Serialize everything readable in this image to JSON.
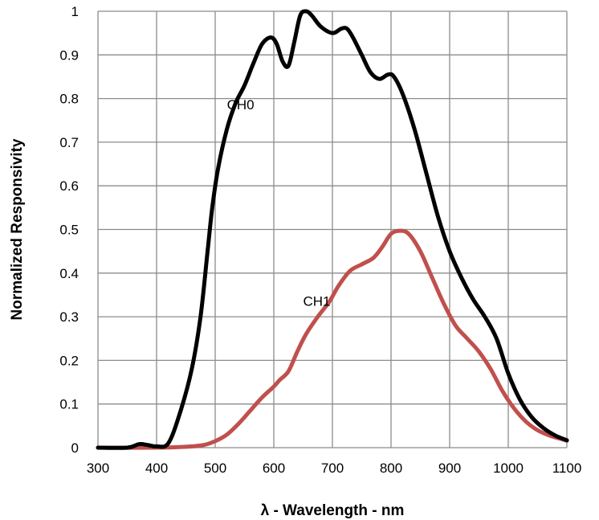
{
  "chart_data": {
    "type": "line",
    "xlabel": "λ - Wavelength - nm",
    "ylabel": "Normalized Responsivity",
    "xlim": [
      300,
      1100
    ],
    "ylim": [
      0,
      1
    ],
    "x_ticks": [
      300,
      400,
      500,
      600,
      700,
      800,
      900,
      1000,
      1100
    ],
    "y_ticks": [
      0,
      0.1,
      0.2,
      0.3,
      0.4,
      0.5,
      0.6,
      0.7,
      0.8,
      0.9,
      1
    ],
    "y_tick_labels": [
      "0",
      "0.1",
      "0.2",
      "0.3",
      "0.4",
      "0.5",
      "0.6",
      "0.7",
      "0.8",
      "0.9",
      "1"
    ],
    "grid": true,
    "legend": "none",
    "series": [
      {
        "name": "CH0",
        "color": "#000000",
        "label_at": [
          520,
          0.775
        ],
        "points": [
          [
            300,
            0.0
          ],
          [
            350,
            0.0
          ],
          [
            370,
            0.008
          ],
          [
            385,
            0.006
          ],
          [
            400,
            0.003
          ],
          [
            420,
            0.01
          ],
          [
            440,
            0.08
          ],
          [
            460,
            0.18
          ],
          [
            475,
            0.3
          ],
          [
            487,
            0.45
          ],
          [
            495,
            0.55
          ],
          [
            505,
            0.64
          ],
          [
            520,
            0.73
          ],
          [
            535,
            0.79
          ],
          [
            550,
            0.83
          ],
          [
            565,
            0.88
          ],
          [
            580,
            0.925
          ],
          [
            595,
            0.94
          ],
          [
            605,
            0.925
          ],
          [
            615,
            0.885
          ],
          [
            625,
            0.875
          ],
          [
            635,
            0.93
          ],
          [
            645,
            0.99
          ],
          [
            655,
            1.0
          ],
          [
            665,
            0.99
          ],
          [
            680,
            0.965
          ],
          [
            700,
            0.95
          ],
          [
            715,
            0.96
          ],
          [
            725,
            0.96
          ],
          [
            735,
            0.94
          ],
          [
            750,
            0.9
          ],
          [
            765,
            0.86
          ],
          [
            780,
            0.845
          ],
          [
            795,
            0.855
          ],
          [
            805,
            0.85
          ],
          [
            820,
            0.81
          ],
          [
            840,
            0.73
          ],
          [
            860,
            0.63
          ],
          [
            880,
            0.53
          ],
          [
            900,
            0.45
          ],
          [
            920,
            0.39
          ],
          [
            940,
            0.34
          ],
          [
            960,
            0.3
          ],
          [
            980,
            0.25
          ],
          [
            1000,
            0.17
          ],
          [
            1020,
            0.11
          ],
          [
            1040,
            0.07
          ],
          [
            1060,
            0.045
          ],
          [
            1080,
            0.028
          ],
          [
            1100,
            0.017
          ]
        ]
      },
      {
        "name": "CH1",
        "color": "#c0504d",
        "label_at": [
          650,
          0.325
        ],
        "points": [
          [
            300,
            0.0
          ],
          [
            400,
            0.0
          ],
          [
            450,
            0.002
          ],
          [
            480,
            0.006
          ],
          [
            500,
            0.015
          ],
          [
            520,
            0.03
          ],
          [
            540,
            0.055
          ],
          [
            560,
            0.085
          ],
          [
            580,
            0.115
          ],
          [
            600,
            0.14
          ],
          [
            610,
            0.155
          ],
          [
            625,
            0.175
          ],
          [
            640,
            0.22
          ],
          [
            655,
            0.26
          ],
          [
            675,
            0.3
          ],
          [
            695,
            0.335
          ],
          [
            710,
            0.37
          ],
          [
            730,
            0.405
          ],
          [
            750,
            0.42
          ],
          [
            770,
            0.435
          ],
          [
            785,
            0.46
          ],
          [
            800,
            0.49
          ],
          [
            815,
            0.497
          ],
          [
            830,
            0.49
          ],
          [
            850,
            0.45
          ],
          [
            870,
            0.39
          ],
          [
            890,
            0.33
          ],
          [
            910,
            0.28
          ],
          [
            930,
            0.25
          ],
          [
            950,
            0.22
          ],
          [
            970,
            0.18
          ],
          [
            990,
            0.13
          ],
          [
            1010,
            0.09
          ],
          [
            1030,
            0.06
          ],
          [
            1050,
            0.04
          ],
          [
            1070,
            0.028
          ],
          [
            1090,
            0.02
          ],
          [
            1100,
            0.016
          ]
        ]
      }
    ]
  }
}
